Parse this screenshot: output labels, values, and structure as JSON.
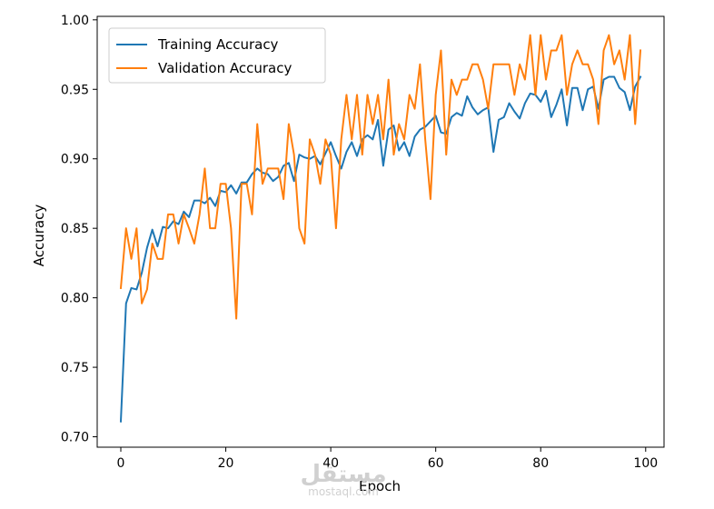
{
  "chart_data": {
    "type": "line",
    "title": "",
    "xlabel": "Epoch",
    "ylabel": "Accuracy",
    "xlim": [
      -4.5,
      103.5
    ],
    "ylim": [
      0.6925,
      1.0025
    ],
    "xticks": [
      "0",
      "20",
      "40",
      "60",
      "80",
      "100"
    ],
    "xtick_values": [
      0,
      20,
      40,
      60,
      80,
      100
    ],
    "yticks": [
      "0.70",
      "0.75",
      "0.80",
      "0.85",
      "0.90",
      "0.95",
      "1.00"
    ],
    "ytick_values": [
      0.7,
      0.75,
      0.8,
      0.85,
      0.9,
      0.95,
      1.0
    ],
    "grid": false,
    "legend_position": "top-left",
    "series": [
      {
        "name": "Training Accuracy",
        "color": "#1f77b4",
        "x": [
          0,
          1,
          2,
          3,
          4,
          5,
          6,
          7,
          8,
          9,
          10,
          11,
          12,
          13,
          14,
          15,
          16,
          17,
          18,
          19,
          20,
          21,
          22,
          23,
          24,
          25,
          26,
          27,
          28,
          29,
          30,
          31,
          32,
          33,
          34,
          35,
          36,
          37,
          38,
          39,
          40,
          41,
          42,
          43,
          44,
          45,
          46,
          47,
          48,
          49,
          50,
          51,
          52,
          53,
          54,
          55,
          56,
          57,
          58,
          59,
          60,
          61,
          62,
          63,
          64,
          65,
          66,
          67,
          68,
          69,
          70,
          71,
          72,
          73,
          74,
          75,
          76,
          77,
          78,
          79,
          80,
          81,
          82,
          83,
          84,
          85,
          86,
          87,
          88,
          89,
          90,
          91,
          92,
          93,
          94,
          95,
          96,
          97,
          98,
          99
        ],
        "values": [
          0.711,
          0.796,
          0.807,
          0.806,
          0.818,
          0.836,
          0.849,
          0.837,
          0.851,
          0.85,
          0.855,
          0.853,
          0.862,
          0.858,
          0.87,
          0.87,
          0.868,
          0.872,
          0.866,
          0.877,
          0.876,
          0.881,
          0.875,
          0.883,
          0.883,
          0.889,
          0.893,
          0.89,
          0.889,
          0.884,
          0.887,
          0.895,
          0.897,
          0.884,
          0.903,
          0.901,
          0.9,
          0.902,
          0.896,
          0.904,
          0.912,
          0.902,
          0.893,
          0.905,
          0.912,
          0.902,
          0.914,
          0.917,
          0.914,
          0.928,
          0.895,
          0.921,
          0.924,
          0.906,
          0.912,
          0.902,
          0.916,
          0.921,
          0.923,
          0.927,
          0.931,
          0.919,
          0.918,
          0.93,
          0.933,
          0.931,
          0.945,
          0.937,
          0.932,
          0.935,
          0.937,
          0.905,
          0.928,
          0.93,
          0.94,
          0.934,
          0.929,
          0.94,
          0.947,
          0.946,
          0.941,
          0.949,
          0.93,
          0.939,
          0.95,
          0.924,
          0.951,
          0.951,
          0.935,
          0.95,
          0.952,
          0.936,
          0.957,
          0.959,
          0.959,
          0.951,
          0.948,
          0.935,
          0.952,
          0.959
        ]
      },
      {
        "name": "Validation Accuracy",
        "color": "#ff7f0e",
        "x": [
          0,
          1,
          2,
          3,
          4,
          5,
          6,
          7,
          8,
          9,
          10,
          11,
          12,
          13,
          14,
          15,
          16,
          17,
          18,
          19,
          20,
          21,
          22,
          23,
          24,
          25,
          26,
          27,
          28,
          29,
          30,
          31,
          32,
          33,
          34,
          35,
          36,
          37,
          38,
          39,
          40,
          41,
          42,
          43,
          44,
          45,
          46,
          47,
          48,
          49,
          50,
          51,
          52,
          53,
          54,
          55,
          56,
          57,
          58,
          59,
          60,
          61,
          62,
          63,
          64,
          65,
          66,
          67,
          68,
          69,
          70,
          71,
          72,
          73,
          74,
          75,
          76,
          77,
          78,
          79,
          80,
          81,
          82,
          83,
          84,
          85,
          86,
          87,
          88,
          89,
          90,
          91,
          92,
          93,
          94,
          95,
          96,
          97,
          98,
          99
        ],
        "values": [
          0.807,
          0.85,
          0.828,
          0.85,
          0.796,
          0.806,
          0.839,
          0.828,
          0.828,
          0.86,
          0.86,
          0.839,
          0.86,
          0.85,
          0.839,
          0.86,
          0.893,
          0.85,
          0.85,
          0.882,
          0.882,
          0.85,
          0.785,
          0.882,
          0.882,
          0.86,
          0.925,
          0.882,
          0.893,
          0.893,
          0.893,
          0.871,
          0.925,
          0.903,
          0.85,
          0.839,
          0.914,
          0.903,
          0.882,
          0.914,
          0.903,
          0.85,
          0.914,
          0.946,
          0.914,
          0.946,
          0.903,
          0.946,
          0.925,
          0.946,
          0.914,
          0.957,
          0.903,
          0.925,
          0.914,
          0.946,
          0.936,
          0.968,
          0.914,
          0.871,
          0.946,
          0.978,
          0.903,
          0.957,
          0.946,
          0.957,
          0.957,
          0.968,
          0.968,
          0.957,
          0.936,
          0.968,
          0.968,
          0.968,
          0.968,
          0.946,
          0.968,
          0.957,
          0.989,
          0.946,
          0.989,
          0.957,
          0.978,
          0.978,
          0.989,
          0.946,
          0.968,
          0.978,
          0.968,
          0.968,
          0.957,
          0.925,
          0.978,
          0.989,
          0.968,
          0.978,
          0.957,
          0.989,
          0.925,
          0.978
        ]
      }
    ]
  },
  "watermark": {
    "arabic": "مستقل",
    "latin": "mostaql.com"
  }
}
